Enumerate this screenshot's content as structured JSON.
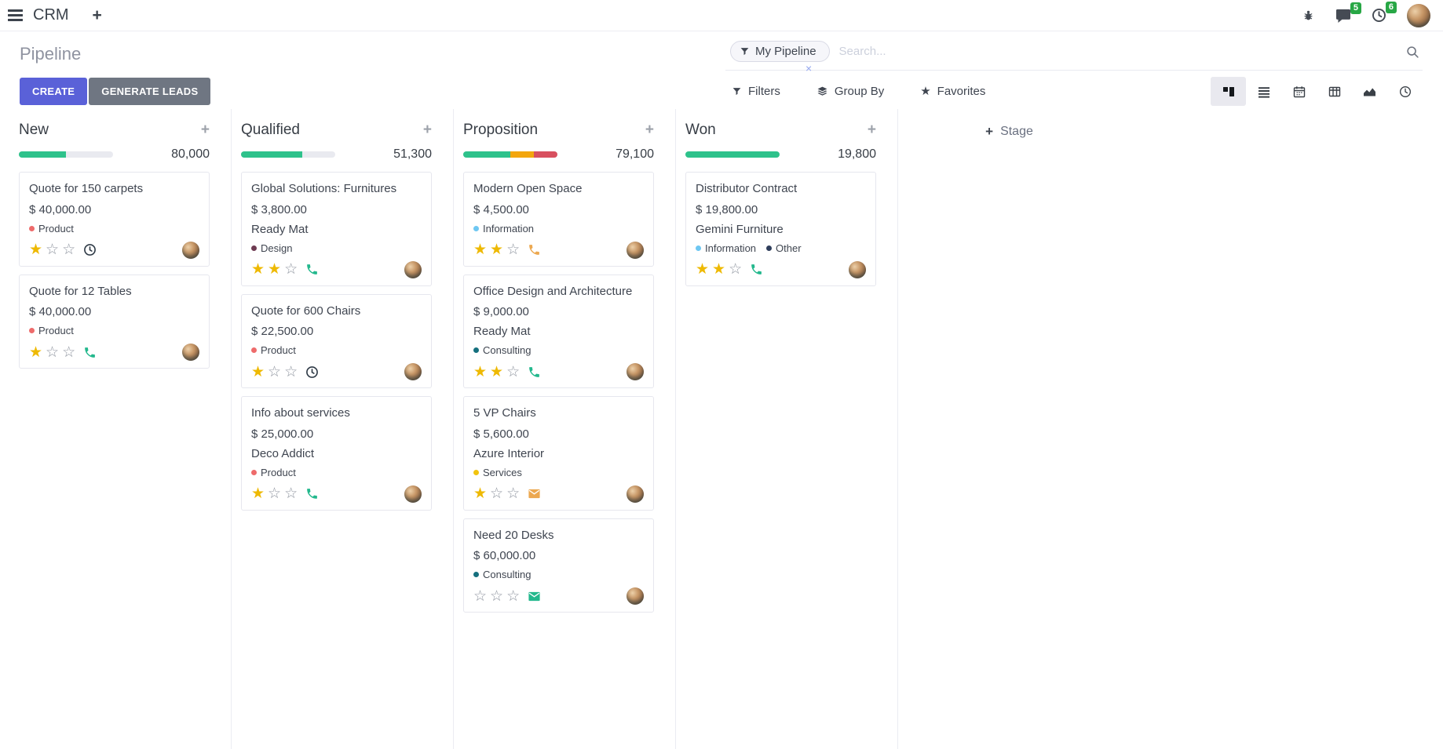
{
  "navbar": {
    "app_name": "CRM",
    "message_badge": "5",
    "activity_badge": "6"
  },
  "control_panel": {
    "title": "Pipeline",
    "buttons": {
      "create": "CREATE",
      "generate_leads": "GENERATE LEADS"
    },
    "search": {
      "facet_label": "My Pipeline",
      "placeholder": "Search..."
    },
    "menus": {
      "filters": "Filters",
      "group_by": "Group By",
      "favorites": "Favorites"
    },
    "view_switcher_active": "kanban"
  },
  "icons": {
    "plus": "+",
    "facet_remove": "×",
    "star_filled": "★",
    "star_empty": "☆",
    "favorites_star": "★"
  },
  "colors": {
    "primary_button": "#5a61d8",
    "secondary_button": "#6f7682",
    "badge_green": "#28a745",
    "star_filled": "#eeb902",
    "star_empty": "#9096a0",
    "activity_green": "#23b88d",
    "activity_orange": "#eca850",
    "activity_dark": "#2e3a46"
  },
  "kanban": {
    "add_stage_label": "Stage",
    "tag_colors": {
      "Product": "#ee6b6b",
      "Design": "#6e3b52",
      "Information": "#6ec7f2",
      "Consulting": "#15707e",
      "Services": "#f2c40f",
      "Other": "#2f3e5c"
    },
    "progress_colors": {
      "green": "#2ec28b",
      "orange": "#f3a60d",
      "red": "#d8505f",
      "track": "#e9eaf0"
    },
    "columns": [
      {
        "title": "New",
        "count": "80,000",
        "progress": [
          {
            "color": "green",
            "pct": 50
          }
        ],
        "cards": [
          {
            "title": "Quote for 150 carpets",
            "amount": "$ 40,000.00",
            "tags": [
              {
                "label": "Product"
              }
            ],
            "stars": 1,
            "activity": "clock"
          },
          {
            "title": "Quote for 12 Tables",
            "amount": "$ 40,000.00",
            "tags": [
              {
                "label": "Product"
              }
            ],
            "stars": 1,
            "activity": "phone-green"
          }
        ]
      },
      {
        "title": "Qualified",
        "count": "51,300",
        "progress": [
          {
            "color": "green",
            "pct": 65
          }
        ],
        "cards": [
          {
            "title": "Global Solutions: Furnitures",
            "amount": "$ 3,800.00",
            "partner": "Ready Mat",
            "tags": [
              {
                "label": "Design"
              }
            ],
            "stars": 2,
            "activity": "phone-green"
          },
          {
            "title": "Quote for 600 Chairs",
            "amount": "$ 22,500.00",
            "tags": [
              {
                "label": "Product"
              }
            ],
            "stars": 1,
            "activity": "clock"
          },
          {
            "title": "Info about services",
            "amount": "$ 25,000.00",
            "partner": "Deco Addict",
            "tags": [
              {
                "label": "Product"
              }
            ],
            "stars": 1,
            "activity": "phone-green"
          }
        ]
      },
      {
        "title": "Proposition",
        "count": "79,100",
        "progress": [
          {
            "color": "green",
            "pct": 50
          },
          {
            "color": "orange",
            "pct": 25
          },
          {
            "color": "red",
            "pct": 25
          }
        ],
        "cards": [
          {
            "title": "Modern Open Space",
            "amount": "$ 4,500.00",
            "tags": [
              {
                "label": "Information"
              }
            ],
            "stars": 2,
            "activity": "phone-orange"
          },
          {
            "title": "Office Design and Architecture",
            "amount": "$ 9,000.00",
            "partner": "Ready Mat",
            "tags": [
              {
                "label": "Consulting"
              }
            ],
            "stars": 2,
            "activity": "phone-green"
          },
          {
            "title": "5 VP Chairs",
            "amount": "$ 5,600.00",
            "partner": "Azure Interior",
            "tags": [
              {
                "label": "Services"
              }
            ],
            "stars": 1,
            "activity": "envelope-orange"
          },
          {
            "title": "Need 20 Desks",
            "amount": "$ 60,000.00",
            "tags": [
              {
                "label": "Consulting"
              }
            ],
            "stars": 0,
            "activity": "envelope-green"
          }
        ]
      },
      {
        "title": "Won",
        "count": "19,800",
        "progress": [
          {
            "color": "green",
            "pct": 100
          }
        ],
        "cards": [
          {
            "title": "Distributor Contract",
            "amount": "$ 19,800.00",
            "partner": "Gemini Furniture",
            "tags": [
              {
                "label": "Information"
              },
              {
                "label": "Other"
              }
            ],
            "stars": 2,
            "activity": "phone-green"
          }
        ]
      }
    ]
  }
}
